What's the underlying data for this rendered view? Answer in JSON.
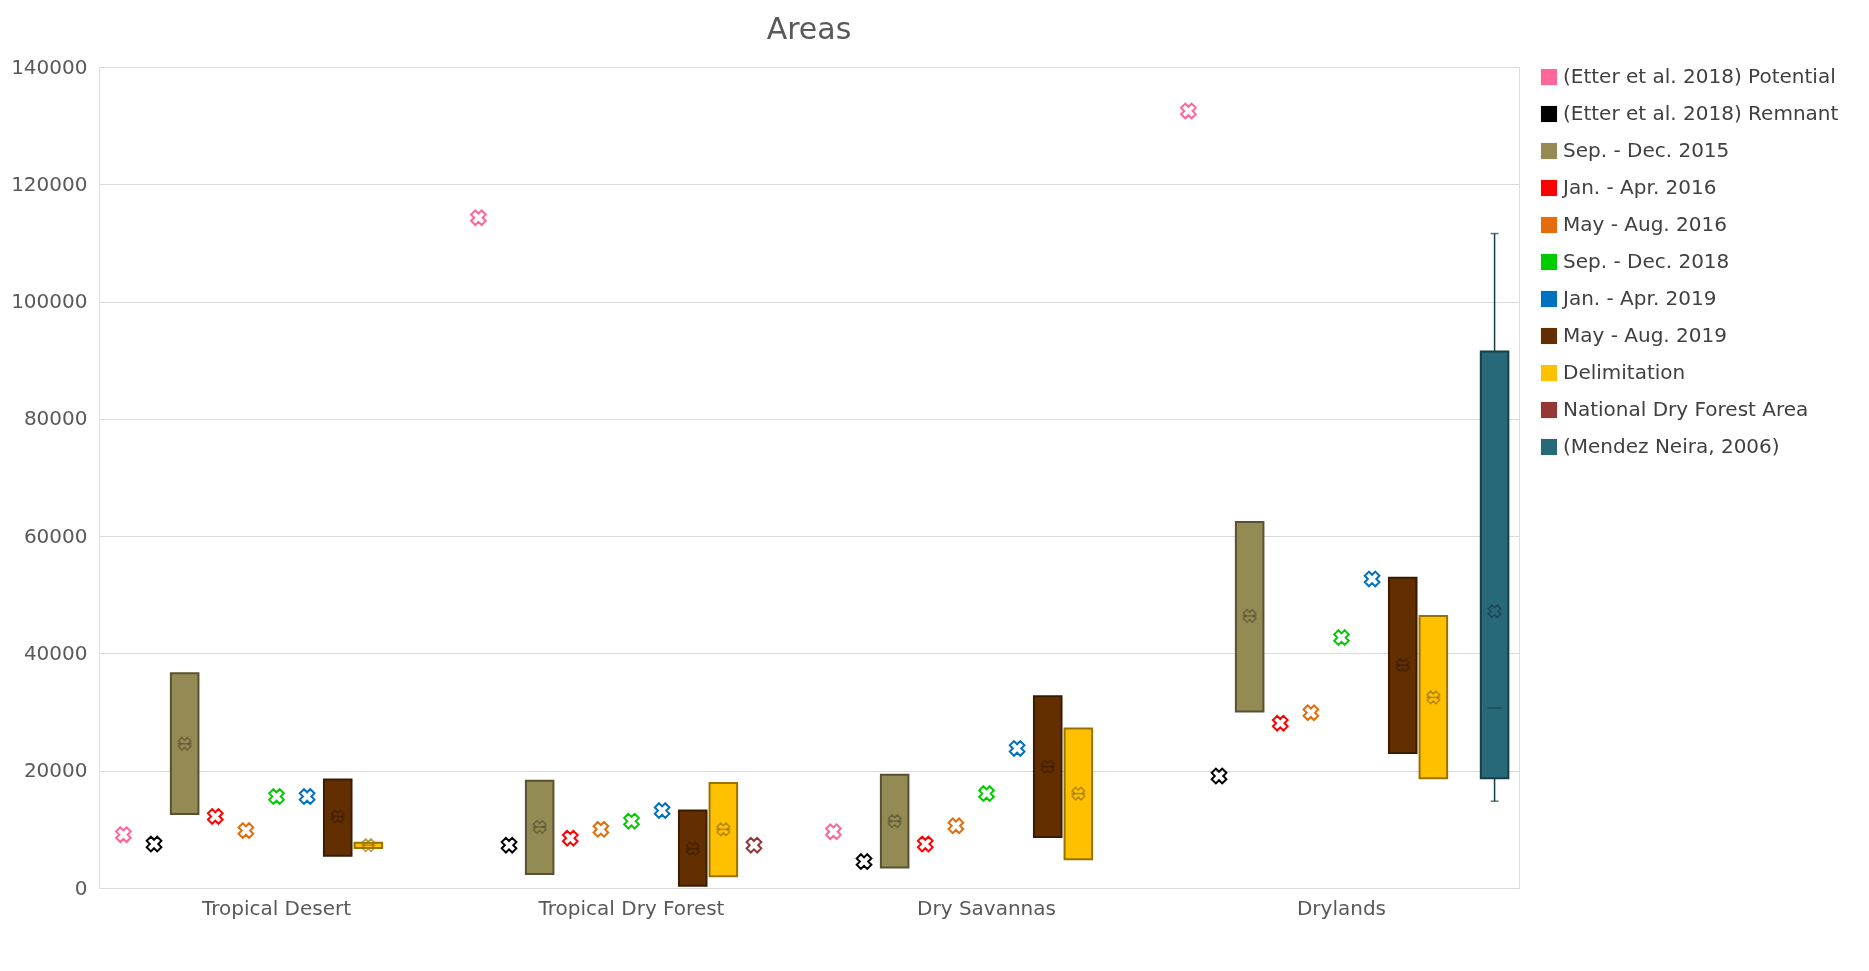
{
  "chart_data": {
    "type": "box",
    "title": "Areas",
    "categories": [
      "Tropical Desert",
      "Tropical Dry Forest",
      "Dry Savannas",
      "Drylands"
    ],
    "ylim": [
      0,
      140000
    ],
    "yticks": [
      0,
      20000,
      40000,
      60000,
      80000,
      100000,
      120000,
      140000
    ],
    "grid": "y",
    "legend": "right",
    "marker": "cross",
    "series": [
      {
        "name": "(Etter et al. 2018) Potential",
        "color": "#ff6699",
        "type": "scatter",
        "values": [
          9100,
          114300,
          9600,
          132500
        ]
      },
      {
        "name": "(Etter et al. 2018) Remnant",
        "color": "#000000",
        "type": "scatter",
        "values": [
          7500,
          7300,
          4500,
          19100
        ]
      },
      {
        "name": "Sep. - Dec. 2015",
        "color": "#948a54",
        "boxes": [
          {
            "low": 12600,
            "q1": 12600,
            "median": 24600,
            "q3": 36600,
            "high": 36600,
            "mean": 24600
          },
          {
            "low": 2400,
            "q1": 2400,
            "median": 10400,
            "q3": 18300,
            "high": 18300,
            "mean": 10400
          },
          {
            "low": 3500,
            "q1": 3500,
            "median": 11400,
            "q3": 19300,
            "high": 19300,
            "mean": 11400
          },
          {
            "low": 30100,
            "q1": 30100,
            "median": 46400,
            "q3": 62400,
            "high": 62400,
            "mean": 46400
          }
        ]
      },
      {
        "name": "Jan. - Apr. 2016",
        "color": "#ff0000",
        "type": "scatter",
        "values": [
          12200,
          8500,
          7500,
          28100
        ]
      },
      {
        "name": "May - Aug. 2016",
        "color": "#e46c0a",
        "type": "scatter",
        "values": [
          9800,
          10000,
          10600,
          29900
        ]
      },
      {
        "name": "Sep. - Dec. 2018",
        "color": "#00cc00",
        "type": "scatter",
        "values": [
          15600,
          11400,
          16100,
          42700
        ]
      },
      {
        "name": "Jan. - Apr. 2019",
        "color": "#0070c0",
        "type": "scatter",
        "values": [
          15600,
          13200,
          23800,
          52700
        ]
      },
      {
        "name": "May - Aug. 2019",
        "color": "#632f00",
        "boxes": [
          {
            "low": 5500,
            "q1": 5500,
            "median": 12200,
            "q3": 18500,
            "high": 18500,
            "mean": 12200
          },
          {
            "low": 400,
            "q1": 400,
            "median": 6700,
            "q3": 13200,
            "high": 13200,
            "mean": 6700
          },
          {
            "low": 8700,
            "q1": 8700,
            "median": 20700,
            "q3": 32700,
            "high": 32700,
            "mean": 20700
          },
          {
            "low": 23000,
            "q1": 23000,
            "median": 38000,
            "q3": 52900,
            "high": 52900,
            "mean": 38000
          }
        ]
      },
      {
        "name": "Delimitation",
        "color": "#ffc000",
        "boxes": [
          {
            "low": 6800,
            "q1": 6800,
            "median": 7300,
            "q3": 7700,
            "high": 7700,
            "mean": 7300
          },
          {
            "low": 2000,
            "q1": 2000,
            "median": 10000,
            "q3": 17900,
            "high": 17900,
            "mean": 10000
          },
          {
            "low": 4900,
            "q1": 4900,
            "median": 16100,
            "q3": 27200,
            "high": 27200,
            "mean": 16100
          },
          {
            "low": 18700,
            "q1": 18700,
            "median": 32500,
            "q3": 46400,
            "high": 46400,
            "mean": 32500
          }
        ]
      },
      {
        "name": "National Dry Forest Area",
        "color": "#953735",
        "type": "scatter",
        "values": [
          null,
          7300,
          null,
          null
        ]
      },
      {
        "name": "(Mendez Neira, 2006)",
        "color": "#276879",
        "boxes": [
          null,
          null,
          null,
          {
            "low": 14800,
            "q1": 18700,
            "median": 30700,
            "q3": 91500,
            "high": 111600,
            "mean": 47200
          }
        ]
      }
    ]
  }
}
